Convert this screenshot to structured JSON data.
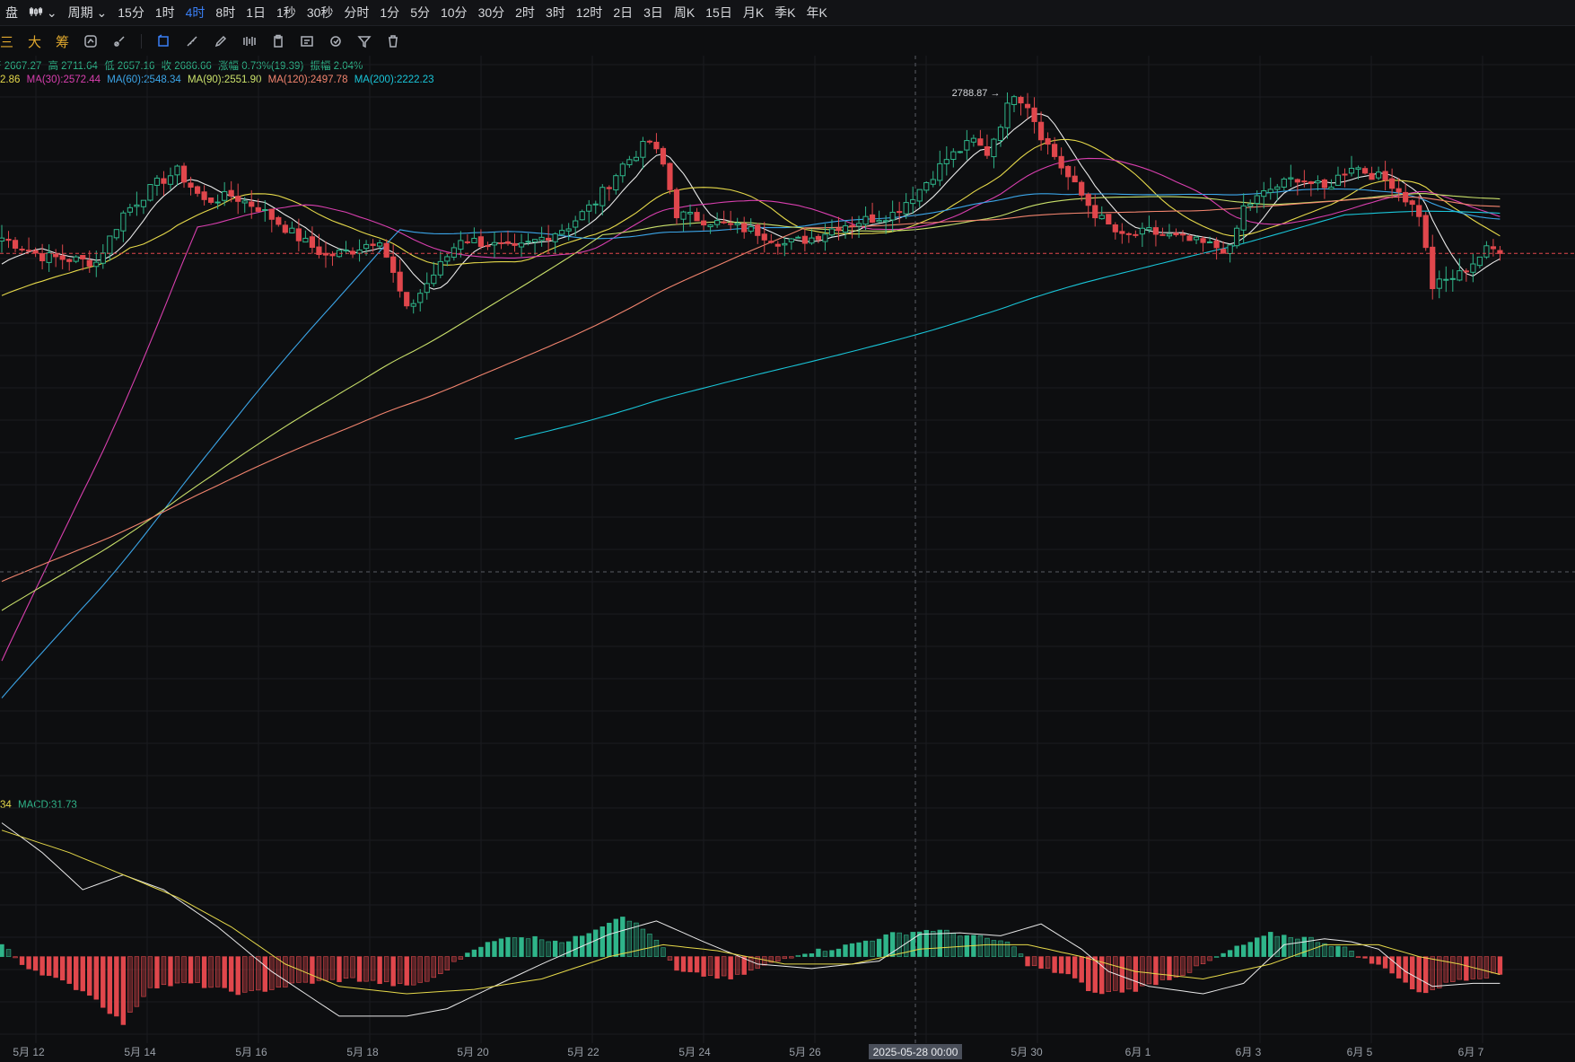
{
  "toolbar_top": {
    "items": [
      "盘",
      "周期",
      "15分",
      "1时",
      "4时",
      "8时",
      "1日",
      "1秒",
      "30秒",
      "分时",
      "1分",
      "5分",
      "10分",
      "30分",
      "2时",
      "3时",
      "12时",
      "2日",
      "3日",
      "周K",
      "15日",
      "月K",
      "季K",
      "年K"
    ],
    "active": "4时",
    "chart_type_icon": "candlestick-icon"
  },
  "toolbar_draw": {
    "text_tools": [
      "三",
      "大",
      "筹"
    ],
    "icons": [
      "indicator-icon",
      "brush-icon",
      "draw-line-icon",
      "ruler-icon",
      "pencil-icon",
      "pattern-icon",
      "clipboard-icon",
      "note-icon",
      "magic-icon",
      "filter-icon",
      "trash-icon"
    ]
  },
  "legend": {
    "ohlc": {
      "open": "开 2667.27",
      "high": "高 2711.64",
      "low": "低 2657.16",
      "close": "收 2686.66",
      "change": "涨幅 0.73%(19.39)",
      "amplitude": "振幅 2.04%"
    },
    "ma": [
      {
        "text": "2.86",
        "color": "#e6d94a"
      },
      {
        "text": "MA(30):2572.44",
        "color": "#d83fae"
      },
      {
        "text": "MA(60):2548.34",
        "color": "#3ba5e8"
      },
      {
        "text": "MA(90):2551.90",
        "color": "#c9e06a"
      },
      {
        "text": "MA(120):2497.78",
        "color": "#f2846e"
      },
      {
        "text": "MA(200):2222.23",
        "color": "#19c5d8"
      }
    ],
    "macd": [
      {
        "text": "34",
        "color": "#e6d94a"
      },
      {
        "text": "MACD:31.73",
        "color": "#2fb58a"
      }
    ]
  },
  "chart_data": {
    "type": "candlestick",
    "interval": "4时",
    "x_tick_labels": [
      "5月 12",
      "5月 14",
      "5月 16",
      "5月 18",
      "5月 20",
      "5月 22",
      "5月 24",
      "5月 26",
      "2025-05-28 00:00",
      "5月 30",
      "6月 1",
      "6月 3",
      "6月 5",
      "6月 7"
    ],
    "max_marker": "2788.87",
    "close_anchors": [
      [
        0,
        2520
      ],
      [
        6,
        2490
      ],
      [
        14,
        2480
      ],
      [
        18,
        2560
      ],
      [
        23,
        2610
      ],
      [
        26,
        2630
      ],
      [
        30,
        2580
      ],
      [
        34,
        2590
      ],
      [
        38,
        2570
      ],
      [
        44,
        2520
      ],
      [
        48,
        2490
      ],
      [
        52,
        2500
      ],
      [
        56,
        2520
      ],
      [
        60,
        2400
      ],
      [
        64,
        2460
      ],
      [
        68,
        2520
      ],
      [
        72,
        2510
      ],
      [
        76,
        2500
      ],
      [
        80,
        2520
      ],
      [
        84,
        2540
      ],
      [
        88,
        2580
      ],
      [
        92,
        2640
      ],
      [
        96,
        2680
      ],
      [
        98,
        2640
      ],
      [
        100,
        2560
      ],
      [
        104,
        2550
      ],
      [
        108,
        2540
      ],
      [
        112,
        2530
      ],
      [
        116,
        2510
      ],
      [
        120,
        2520
      ],
      [
        124,
        2540
      ],
      [
        128,
        2550
      ],
      [
        132,
        2560
      ],
      [
        136,
        2600
      ],
      [
        140,
        2650
      ],
      [
        144,
        2680
      ],
      [
        146,
        2660
      ],
      [
        150,
        2760
      ],
      [
        152,
        2740
      ],
      [
        154,
        2690
      ],
      [
        158,
        2620
      ],
      [
        162,
        2560
      ],
      [
        166,
        2520
      ],
      [
        170,
        2530
      ],
      [
        174,
        2520
      ],
      [
        178,
        2510
      ],
      [
        182,
        2500
      ],
      [
        184,
        2570
      ],
      [
        188,
        2600
      ],
      [
        192,
        2620
      ],
      [
        196,
        2600
      ],
      [
        200,
        2640
      ],
      [
        204,
        2620
      ],
      [
        206,
        2610
      ],
      [
        210,
        2560
      ],
      [
        212,
        2440
      ],
      [
        216,
        2460
      ],
      [
        220,
        2500
      ],
      [
        222,
        2502
      ]
    ],
    "ylim": [
      1700,
      2820
    ],
    "macd": {
      "hist_anchors": [
        [
          0,
          8
        ],
        [
          3,
          -5
        ],
        [
          8,
          -15
        ],
        [
          13,
          -25
        ],
        [
          18,
          -45
        ],
        [
          22,
          -20
        ],
        [
          28,
          -18
        ],
        [
          36,
          -25
        ],
        [
          44,
          -18
        ],
        [
          52,
          -15
        ],
        [
          60,
          -20
        ],
        [
          64,
          -15
        ],
        [
          70,
          6
        ],
        [
          76,
          14
        ],
        [
          84,
          10
        ],
        [
          92,
          28
        ],
        [
          97,
          12
        ],
        [
          100,
          -10
        ],
        [
          108,
          -15
        ],
        [
          112,
          -8
        ],
        [
          118,
          2
        ],
        [
          124,
          6
        ],
        [
          132,
          15
        ],
        [
          138,
          18
        ],
        [
          146,
          12
        ],
        [
          150,
          8
        ],
        [
          152,
          -6
        ],
        [
          158,
          -12
        ],
        [
          162,
          -25
        ],
        [
          168,
          -22
        ],
        [
          176,
          -10
        ],
        [
          182,
          4
        ],
        [
          188,
          15
        ],
        [
          194,
          12
        ],
        [
          200,
          4
        ],
        [
          202,
          -2
        ],
        [
          206,
          -10
        ],
        [
          210,
          -25
        ],
        [
          216,
          -15
        ],
        [
          222,
          -12
        ]
      ],
      "dif_anchors": [
        [
          0,
          90
        ],
        [
          6,
          70
        ],
        [
          12,
          45
        ],
        [
          18,
          55
        ],
        [
          24,
          45
        ],
        [
          32,
          20
        ],
        [
          40,
          -10
        ],
        [
          50,
          -40
        ],
        [
          60,
          -40
        ],
        [
          66,
          -35
        ],
        [
          72,
          -22
        ],
        [
          80,
          -5
        ],
        [
          90,
          15
        ],
        [
          97,
          24
        ],
        [
          104,
          10
        ],
        [
          112,
          -5
        ],
        [
          120,
          -8
        ],
        [
          130,
          -3
        ],
        [
          136,
          15
        ],
        [
          142,
          16
        ],
        [
          148,
          14
        ],
        [
          154,
          22
        ],
        [
          160,
          5
        ],
        [
          164,
          -10
        ],
        [
          170,
          -20
        ],
        [
          178,
          -25
        ],
        [
          184,
          -18
        ],
        [
          190,
          8
        ],
        [
          196,
          12
        ],
        [
          200,
          10
        ],
        [
          204,
          5
        ],
        [
          208,
          -10
        ],
        [
          212,
          -20
        ],
        [
          218,
          -18
        ],
        [
          222,
          -18
        ]
      ],
      "dea_anchors": [
        [
          0,
          85
        ],
        [
          10,
          70
        ],
        [
          18,
          55
        ],
        [
          26,
          40
        ],
        [
          34,
          20
        ],
        [
          42,
          -5
        ],
        [
          50,
          -20
        ],
        [
          60,
          -25
        ],
        [
          70,
          -22
        ],
        [
          80,
          -15
        ],
        [
          90,
          0
        ],
        [
          98,
          8
        ],
        [
          106,
          4
        ],
        [
          116,
          -5
        ],
        [
          126,
          -5
        ],
        [
          136,
          5
        ],
        [
          146,
          8
        ],
        [
          152,
          8
        ],
        [
          160,
          0
        ],
        [
          168,
          -10
        ],
        [
          178,
          -15
        ],
        [
          188,
          -5
        ],
        [
          196,
          8
        ],
        [
          204,
          8
        ],
        [
          210,
          0
        ],
        [
          216,
          -5
        ],
        [
          222,
          -12
        ]
      ],
      "ylim": [
        -60,
        100
      ]
    }
  }
}
